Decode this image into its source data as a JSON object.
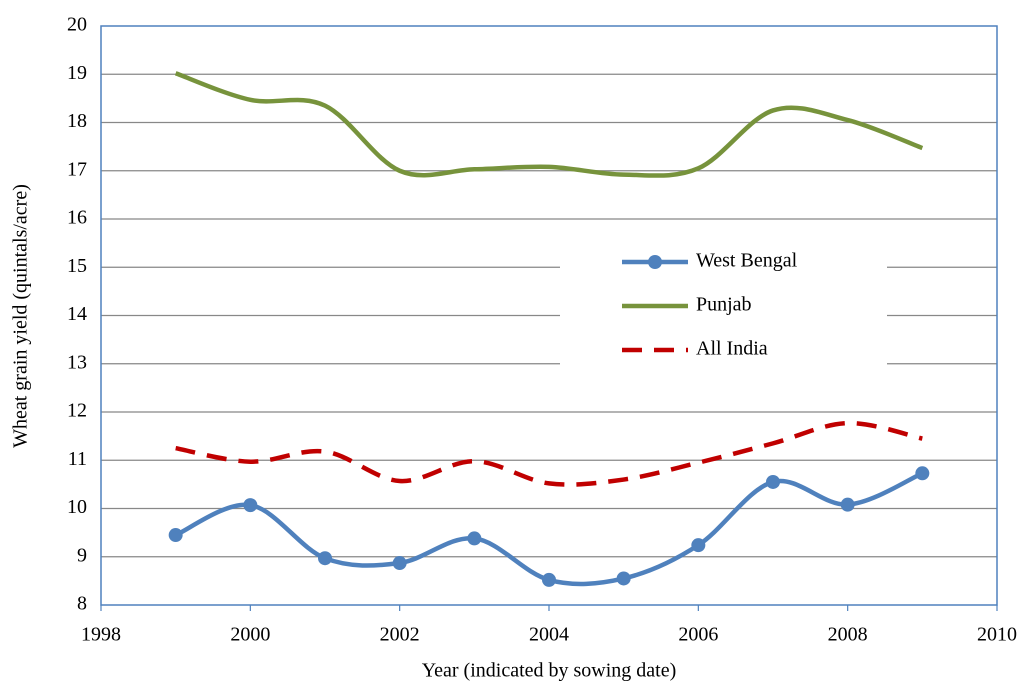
{
  "chart_data": {
    "type": "line",
    "xlabel": "Year (indicated by sowing date)",
    "ylabel": "Wheat grain yield (quintals/acre)",
    "x": [
      1999,
      2000,
      2001,
      2002,
      2003,
      2004,
      2005,
      2006,
      2007,
      2008,
      2009
    ],
    "series": [
      {
        "name": "West Bengal",
        "color": "#4f81bd",
        "marker": "circle",
        "line_style": "solid",
        "values": [
          9.45,
          10.07,
          8.97,
          8.87,
          9.38,
          8.52,
          8.55,
          9.24,
          10.55,
          10.08,
          10.73
        ]
      },
      {
        "name": "Punjab",
        "color": "#77933c",
        "marker": "none",
        "line_style": "solid",
        "values": [
          19.02,
          18.47,
          18.35,
          17.0,
          17.03,
          17.08,
          16.92,
          17.05,
          18.25,
          18.05,
          17.47
        ]
      },
      {
        "name": "All India",
        "color": "#c00000",
        "marker": "none",
        "line_style": "dashed",
        "values": [
          11.25,
          10.97,
          11.18,
          10.57,
          10.98,
          10.52,
          10.6,
          10.95,
          11.35,
          11.77,
          11.45
        ]
      }
    ],
    "xlim": [
      1998,
      2010
    ],
    "xticks": [
      1998,
      2000,
      2002,
      2004,
      2006,
      2008,
      2010
    ],
    "ylim": [
      8,
      20
    ],
    "yticks": [
      8,
      9,
      10,
      11,
      12,
      13,
      14,
      15,
      16,
      17,
      18,
      19,
      20
    ],
    "grid": true,
    "smooth": true,
    "legend": "center-right"
  }
}
